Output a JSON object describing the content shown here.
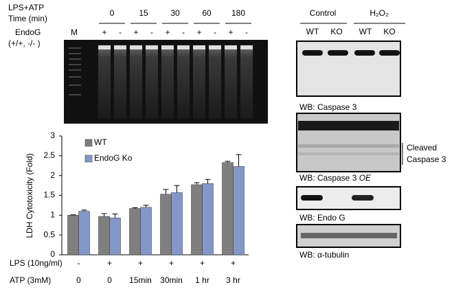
{
  "chart_data": {
    "type": "bar",
    "ylabel": "LDH Cytotoxicity  (Fold)",
    "categories_label": "ATP (3mM)",
    "categories": [
      "0",
      "0",
      "15min",
      "30min",
      "1 hr",
      "3 hr"
    ],
    "lps_row": {
      "label": "LPS (10ng/ml)",
      "values": [
        "-",
        "+",
        "+",
        "+",
        "+",
        "+"
      ]
    },
    "series": [
      {
        "name": "WT",
        "color": "#7f7f7f",
        "values": [
          1.0,
          0.97,
          1.17,
          1.53,
          1.77,
          2.33
        ],
        "errors": [
          0.01,
          0.07,
          0.02,
          0.12,
          0.05,
          0.03
        ]
      },
      {
        "name": "EndoG Ko",
        "color": "#8497c9",
        "values": [
          1.1,
          0.93,
          1.2,
          1.57,
          1.8,
          2.23
        ],
        "errors": [
          0.03,
          0.1,
          0.05,
          0.18,
          0.1,
          0.3
        ]
      }
    ],
    "ylim": [
      0,
      3
    ],
    "yticks": [
      0,
      0.5,
      1,
      1.5,
      2,
      2.5,
      3
    ]
  },
  "gel": {
    "title": "LPS+ATP",
    "time_label": "Time (min)",
    "times": [
      "0",
      "15",
      "30",
      "60",
      "180"
    ],
    "endog_label": "EndoG",
    "genotype_label": "(+/+, -/- )",
    "marker": "M",
    "lanes": [
      "+",
      "-",
      "+",
      "-",
      "+",
      "-",
      "+",
      "-",
      "+",
      "-"
    ]
  },
  "western": {
    "groups": [
      "Control",
      "H₂O₂"
    ],
    "lanes": [
      "WT",
      "KO",
      "WT",
      "KO"
    ],
    "panels": [
      "WB: Caspase 3",
      "WB: Caspase 3",
      "WB: Endo G",
      "WB: α-tubulin"
    ],
    "panel2_suffix": "OE",
    "cleaved": [
      "Cleaved",
      "Caspase 3"
    ]
  }
}
